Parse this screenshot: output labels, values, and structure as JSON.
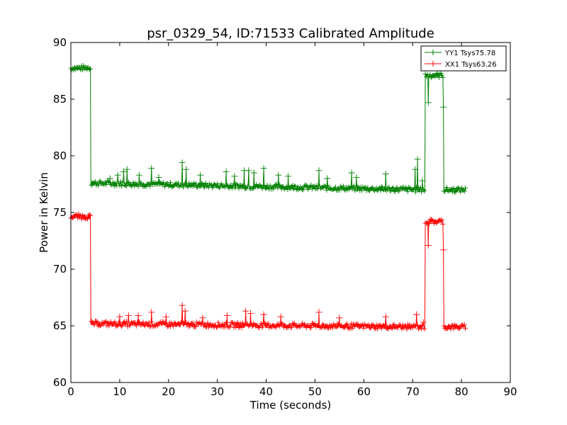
{
  "chart_data": {
    "type": "line",
    "title": "psr_0329_54, ID:71533 Calibrated Amplitude",
    "xlabel": "Time (seconds)",
    "ylabel": "Power in Kelvin",
    "xlim": [
      0,
      90
    ],
    "ylim": [
      60,
      90
    ],
    "xticks": [
      "0",
      "10",
      "20",
      "30",
      "40",
      "50",
      "60",
      "70",
      "80",
      "90"
    ],
    "yticks": [
      "60",
      "65",
      "70",
      "75",
      "80",
      "85",
      "90"
    ],
    "grid": false,
    "legend_position": "top-right",
    "marker": "plus",
    "series": [
      {
        "name": "YY1 Tsys75.78",
        "color": "#008000",
        "base_segments": [
          {
            "from": 0,
            "to": 4.1,
            "level": 87.75
          },
          {
            "from": 4.1,
            "to": 72.6,
            "level_start": 77.6,
            "level_end": 77.0
          },
          {
            "from": 72.6,
            "to": 76.3,
            "level": 87.1
          },
          {
            "from": 76.3,
            "to": 81,
            "level": 77.0
          }
        ],
        "spikes": [
          {
            "x": 8,
            "y": 78.0
          },
          {
            "x": 9.6,
            "y": 78.3
          },
          {
            "x": 10.8,
            "y": 78.6
          },
          {
            "x": 11.5,
            "y": 78.8
          },
          {
            "x": 14.0,
            "y": 78.3
          },
          {
            "x": 16.5,
            "y": 78.9
          },
          {
            "x": 18.0,
            "y": 78.1
          },
          {
            "x": 22.8,
            "y": 79.4
          },
          {
            "x": 23.6,
            "y": 78.8
          },
          {
            "x": 26.5,
            "y": 78.3
          },
          {
            "x": 31.8,
            "y": 78.6
          },
          {
            "x": 33.5,
            "y": 78.2
          },
          {
            "x": 35.5,
            "y": 78.7
          },
          {
            "x": 36.4,
            "y": 78.7
          },
          {
            "x": 37.5,
            "y": 78.5
          },
          {
            "x": 39.5,
            "y": 78.9
          },
          {
            "x": 42.5,
            "y": 78.3
          },
          {
            "x": 44.5,
            "y": 78.2
          },
          {
            "x": 50.8,
            "y": 78.7
          },
          {
            "x": 52.5,
            "y": 78.0
          },
          {
            "x": 57.5,
            "y": 78.5
          },
          {
            "x": 58.5,
            "y": 78.1
          },
          {
            "x": 64.5,
            "y": 78.4
          },
          {
            "x": 70.5,
            "y": 78.8
          },
          {
            "x": 71.0,
            "y": 79.7
          },
          {
            "x": 72.0,
            "y": 77.8
          },
          {
            "x": 73.2,
            "y": 84.7
          },
          {
            "x": 76.3,
            "y": 84.3
          }
        ]
      },
      {
        "name": "XX1 Tsys63.26",
        "color": "#ff0000",
        "base_segments": [
          {
            "from": 0,
            "to": 4.1,
            "level": 74.65
          },
          {
            "from": 4.1,
            "to": 72.6,
            "level_start": 65.2,
            "level_end": 64.9
          },
          {
            "from": 72.6,
            "to": 76.3,
            "level": 74.2
          },
          {
            "from": 76.3,
            "to": 81,
            "level": 64.9
          }
        ],
        "spikes": [
          {
            "x": 10.0,
            "y": 65.8
          },
          {
            "x": 11.8,
            "y": 65.9
          },
          {
            "x": 13.8,
            "y": 65.9
          },
          {
            "x": 16.5,
            "y": 66.2
          },
          {
            "x": 19.5,
            "y": 65.8
          },
          {
            "x": 22.8,
            "y": 66.8
          },
          {
            "x": 23.4,
            "y": 66.3
          },
          {
            "x": 27.0,
            "y": 65.7
          },
          {
            "x": 32.0,
            "y": 65.9
          },
          {
            "x": 35.8,
            "y": 66.3
          },
          {
            "x": 36.8,
            "y": 66.1
          },
          {
            "x": 39.5,
            "y": 66.0
          },
          {
            "x": 43.0,
            "y": 65.8
          },
          {
            "x": 50.8,
            "y": 66.2
          },
          {
            "x": 55.0,
            "y": 65.7
          },
          {
            "x": 64.5,
            "y": 65.8
          },
          {
            "x": 70.8,
            "y": 66.0
          },
          {
            "x": 72.2,
            "y": 65.3
          },
          {
            "x": 73.2,
            "y": 72.1
          },
          {
            "x": 76.3,
            "y": 71.7
          }
        ]
      }
    ]
  }
}
